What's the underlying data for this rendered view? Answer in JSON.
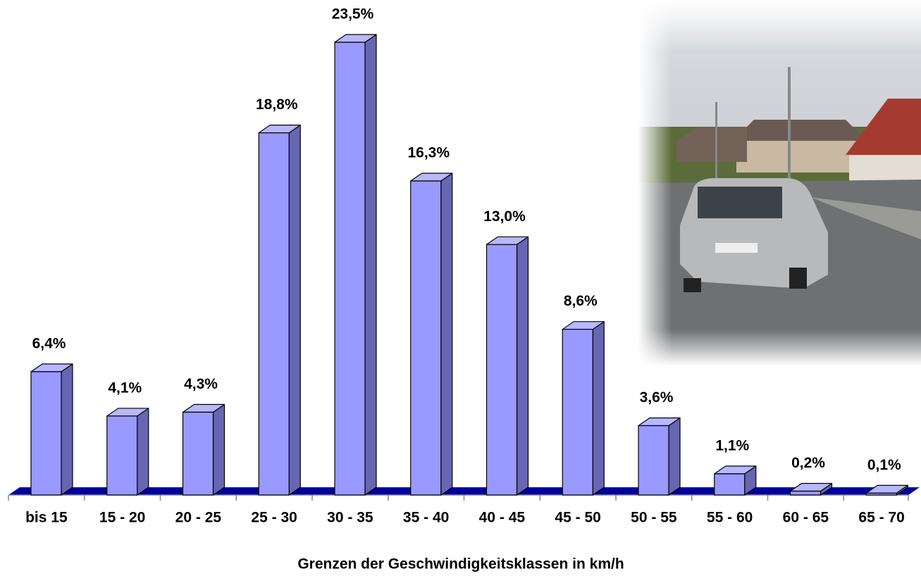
{
  "chart_data": {
    "type": "bar3d",
    "x_label": "Grenzen der Geschwindigkeitsklassen in km/h",
    "categories": [
      "bis 15",
      "15 - 20",
      "20 - 25",
      "25 - 30",
      "30 - 35",
      "35 - 40",
      "40 - 45",
      "45 - 50",
      "50 - 55",
      "55 - 60",
      "60 - 65",
      "65 - 70"
    ],
    "values": [
      6.4,
      4.1,
      4.3,
      18.8,
      23.5,
      16.3,
      13.0,
      8.6,
      3.6,
      1.1,
      0.2,
      0.1
    ],
    "value_labels": [
      "6,4%",
      "4,1%",
      "4,3%",
      "18,8%",
      "23,5%",
      "16,3%",
      "13,0%",
      "8,6%",
      "3,6%",
      "1,1%",
      "0,2%",
      "0,1%"
    ],
    "color": "#9999ff",
    "side_color": "#6666b3",
    "top_color": "#b8b8ff",
    "floor_color": "#0000a0"
  }
}
